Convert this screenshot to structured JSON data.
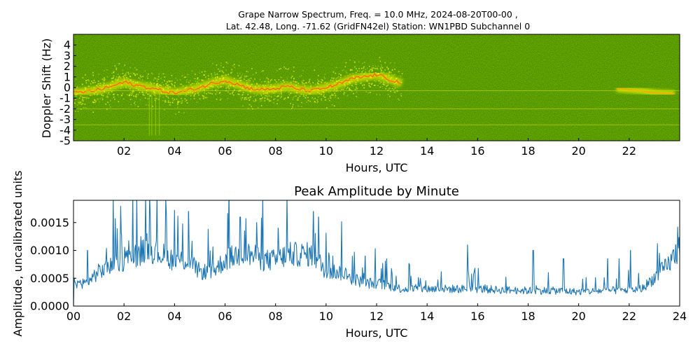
{
  "title": {
    "line1": "Grape Narrow Spectrum, Freq. = 10.0 MHz, 2024-08-20T00-00 ,",
    "line2": "Lat.  42.48, Long. -71.62 (GridFN42el) Station: WN1PBD Subchannel 0"
  },
  "chart_data": [
    {
      "type": "heatmap",
      "name": "spectrogram",
      "xlabel": "Hours, UTC",
      "ylabel": "Doppler Shift (Hz)",
      "xlim": [
        0,
        24
      ],
      "ylim": [
        -5,
        5
      ],
      "x_ticks": [
        2,
        4,
        6,
        8,
        10,
        12,
        14,
        16,
        18,
        20,
        22
      ],
      "x_tick_labels": [
        "02",
        "04",
        "06",
        "08",
        "10",
        "12",
        "14",
        "16",
        "18",
        "20",
        "22"
      ],
      "y_ticks": [
        4,
        3,
        2,
        1,
        0,
        -1,
        -2,
        -3,
        -4,
        -5
      ],
      "y_tick_labels": [
        "4",
        "3",
        "2",
        "1",
        "0",
        "-1",
        "-2",
        "-3",
        "-4",
        "-5"
      ],
      "colormap": [
        "#006400",
        "#2e8b00",
        "#ffff00",
        "#ffa500",
        "#ff0000"
      ],
      "background_color": "#1f7a00",
      "signal_trace": {
        "hours": [
          0,
          0.5,
          1,
          1.5,
          2,
          2.5,
          3,
          3.5,
          4,
          4.5,
          5,
          5.5,
          6,
          6.5,
          7,
          7.5,
          8,
          8.5,
          9,
          9.5,
          10,
          10.5,
          11,
          11.5,
          12,
          12.5,
          13
        ],
        "doppler_hz": [
          -0.5,
          -0.4,
          -0.2,
          0.1,
          0.5,
          0.2,
          0,
          -0.3,
          -0.5,
          -0.3,
          0,
          0.4,
          0.7,
          0.3,
          -0.1,
          -0.2,
          -0.1,
          0.1,
          -0.2,
          -0.3,
          0,
          0.3,
          0.8,
          1,
          1.2,
          0.8,
          0.4
        ]
      },
      "tail_signal": {
        "hours": [
          21.5,
          22,
          22.5,
          23,
          23.8
        ],
        "doppler_hz": [
          -0.1,
          -0.2,
          -0.3,
          -0.5,
          -0.6
        ]
      },
      "constant_lines_hz": [
        -0.3,
        -2,
        -3.5
      ]
    },
    {
      "type": "line",
      "name": "peak-amplitude",
      "title": "Peak Amplitude by Minute",
      "xlabel": "Hours, UTC",
      "ylabel": "Amplitude, uncalibrated units",
      "xlim": [
        0,
        24
      ],
      "ylim": [
        0,
        0.0019
      ],
      "x_ticks": [
        0,
        2,
        4,
        6,
        8,
        10,
        12,
        14,
        16,
        18,
        20,
        22,
        24
      ],
      "x_tick_labels": [
        "00",
        "02",
        "04",
        "06",
        "08",
        "10",
        "12",
        "14",
        "16",
        "18",
        "20",
        "22",
        "24"
      ],
      "y_ticks": [
        0,
        0.0005,
        0.001,
        0.0015
      ],
      "y_tick_labels": [
        "0.0000",
        "0.0005",
        "0.0010",
        "0.0015"
      ],
      "line_color": "#1f77b4",
      "baseline": {
        "hours": [
          0,
          0.5,
          1,
          1.5,
          2,
          2.5,
          3,
          3.5,
          4,
          4.5,
          5,
          5.5,
          6,
          6.5,
          7,
          7.5,
          8,
          8.5,
          9,
          9.5,
          10,
          10.5,
          11,
          11.5,
          12,
          13,
          14,
          15,
          16,
          17,
          18,
          19,
          20,
          21,
          22,
          22.5,
          23,
          23.5,
          24
        ],
        "amplitude": [
          0.0004,
          0.0004,
          0.0006,
          0.0007,
          0.0008,
          0.0009,
          0.001,
          0.0009,
          0.0008,
          0.0008,
          0.0006,
          0.0006,
          0.0008,
          0.0009,
          0.0009,
          0.0008,
          0.0008,
          0.0009,
          0.0009,
          0.0009,
          0.0006,
          0.0006,
          0.0005,
          0.0004,
          0.0004,
          0.0003,
          0.0003,
          0.0003,
          0.0003,
          0.00028,
          0.00027,
          0.00027,
          0.00025,
          0.00027,
          0.00028,
          0.0003,
          0.0005,
          0.0007,
          0.001
        ]
      },
      "peaks": {
        "hours": [
          0.55,
          1.9,
          2.9,
          4.55,
          6.15,
          6.6,
          7.25,
          8.1,
          9.5,
          9.7,
          11.55,
          12.4,
          13.3,
          15.6,
          18.2,
          19.4,
          21.15,
          21.6,
          22.05,
          23.2,
          23.85
        ],
        "amplitude": [
          0.001,
          0.0013,
          0.0013,
          0.0017,
          0.0019,
          0.0016,
          0.0015,
          0.0014,
          0.0017,
          0.0016,
          0.0009,
          0.00085,
          0.00075,
          0.0011,
          0.001,
          0.00085,
          0.00085,
          0.00085,
          0.001,
          0.00095,
          0.0011
        ]
      }
    }
  ]
}
